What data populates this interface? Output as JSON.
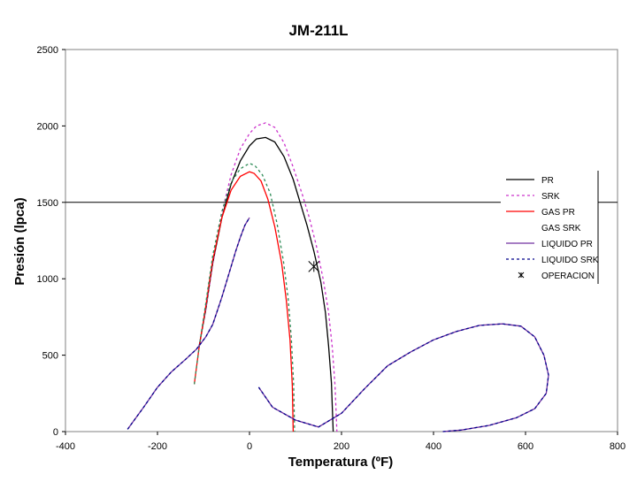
{
  "chart_data": {
    "type": "line",
    "title": "JM-211L",
    "xlabel": "Temperatura (ºF)",
    "ylabel": "Presión (lpca)",
    "xlim": [
      -400,
      800
    ],
    "ylim": [
      0,
      2500
    ],
    "xticks": [
      -400,
      -200,
      0,
      200,
      400,
      600,
      800
    ],
    "yticks": [
      0,
      500,
      1000,
      1500,
      2000,
      2500
    ],
    "grid": "horizontal line at 1500",
    "legend_position": "right",
    "reference_line_y": 1500,
    "series": [
      {
        "name": "PR",
        "color": "#000000",
        "dash": "",
        "x": [
          -110,
          -95,
          -80,
          -60,
          -40,
          -20,
          0,
          15,
          35,
          55,
          75,
          95,
          110,
          125,
          140,
          155,
          165,
          172,
          178,
          182
        ],
        "y": [
          550,
          800,
          1100,
          1400,
          1620,
          1770,
          1870,
          1915,
          1925,
          1895,
          1800,
          1650,
          1500,
          1350,
          1180,
          980,
          780,
          560,
          320,
          0
        ]
      },
      {
        "name": "SRK",
        "color": "#cc33cc",
        "dash": "3,3",
        "x": [
          -110,
          -95,
          -80,
          -60,
          -40,
          -20,
          0,
          15,
          35,
          55,
          75,
          95,
          115,
          130,
          145,
          160,
          172,
          180,
          186,
          190
        ],
        "y": [
          550,
          800,
          1100,
          1430,
          1680,
          1850,
          1950,
          2000,
          2020,
          1990,
          1890,
          1730,
          1550,
          1400,
          1220,
          1000,
          780,
          550,
          300,
          0
        ]
      },
      {
        "name": "GAS PR",
        "color": "#ff0000",
        "dash": "",
        "x": [
          -120,
          -110,
          -95,
          -80,
          -60,
          -40,
          -20,
          0,
          10,
          25,
          40,
          55,
          70,
          80,
          88,
          93,
          95
        ],
        "y": [
          310,
          540,
          820,
          1120,
          1400,
          1580,
          1670,
          1700,
          1690,
          1640,
          1520,
          1340,
          1100,
          860,
          600,
          300,
          0
        ]
      },
      {
        "name": "GAS SRK",
        "color": "#2e8b57",
        "dash": "3,3",
        "x": [
          -120,
          -110,
          -95,
          -80,
          -60,
          -40,
          -20,
          0,
          12,
          28,
          45,
          60,
          74,
          84,
          91,
          96,
          98
        ],
        "y": [
          310,
          540,
          840,
          1150,
          1440,
          1630,
          1720,
          1755,
          1740,
          1680,
          1560,
          1360,
          1110,
          870,
          610,
          310,
          0
        ]
      },
      {
        "name": "LIQUIDO PR",
        "color": "#7030a0",
        "dash": "",
        "x": [
          -265,
          -230,
          -200,
          -170,
          -140,
          -115,
          -95,
          -80,
          -70,
          -60,
          -50,
          -40,
          -30,
          -20,
          -10,
          0,
          20,
          50,
          100,
          150,
          200,
          250,
          300,
          350,
          400,
          450,
          500,
          550,
          590,
          620,
          640,
          650,
          645,
          620,
          580,
          520,
          460,
          420
        ],
        "y": [
          15,
          160,
          290,
          390,
          470,
          540,
          620,
          700,
          790,
          880,
          980,
          1080,
          1180,
          1270,
          1350,
          1400,
          290,
          160,
          75,
          30,
          120,
          280,
          430,
          520,
          600,
          655,
          695,
          705,
          690,
          620,
          500,
          370,
          250,
          150,
          90,
          40,
          10,
          0
        ],
        "break_after_index": 15
      },
      {
        "name": "LIQUIDO SRK",
        "color": "#00008b",
        "dash": "3,3",
        "x": [
          -265,
          -230,
          -200,
          -170,
          -140,
          -115,
          -95,
          -80,
          -70,
          -60,
          -50,
          -40,
          -30,
          -20,
          -10,
          0,
          20,
          50,
          100,
          150,
          200,
          250,
          300,
          350,
          400,
          450,
          500,
          550,
          590,
          620,
          640,
          650,
          645,
          620,
          580,
          520,
          460,
          420
        ],
        "y": [
          15,
          160,
          290,
          390,
          470,
          540,
          620,
          700,
          790,
          880,
          980,
          1080,
          1180,
          1270,
          1350,
          1400,
          290,
          160,
          75,
          30,
          120,
          280,
          430,
          520,
          600,
          655,
          695,
          705,
          690,
          620,
          500,
          370,
          250,
          150,
          90,
          40,
          10,
          0
        ],
        "break_after_index": 15
      }
    ],
    "operation_point": {
      "name": "OPERACION",
      "x": 140,
      "y": 1080,
      "marker": "asterisk",
      "color": "#000000"
    }
  }
}
